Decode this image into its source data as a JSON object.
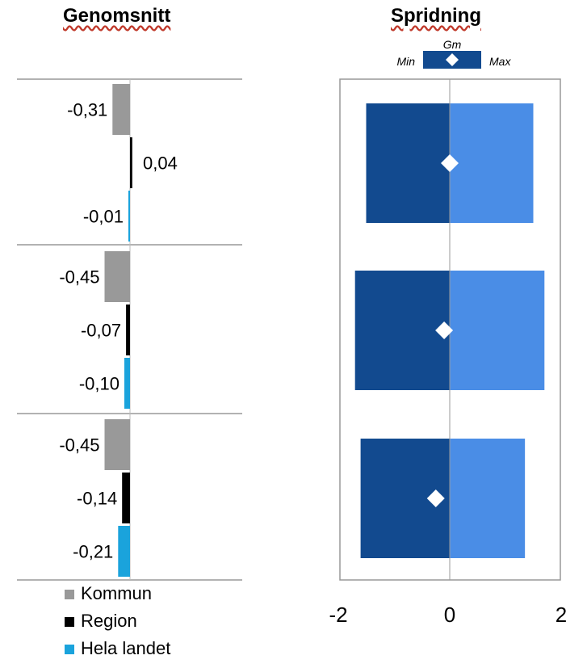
{
  "colors": {
    "kommun": "#999999",
    "region": "#000000",
    "hela_landet": "#1aa3dc",
    "min_bar": "#124a8f",
    "max_bar": "#4a8de6",
    "gm_marker": "#ffffff",
    "grid": "#999999"
  },
  "chart_data": [
    {
      "type": "bar",
      "orientation": "horizontal",
      "title": "Genomsnitt",
      "groups": 3,
      "series": [
        {
          "name": "Kommun",
          "values": [
            -0.31,
            -0.45,
            -0.45
          ],
          "labels": [
            "-0,31",
            "-0,45",
            "-0,45"
          ]
        },
        {
          "name": "Region",
          "values": [
            0.04,
            -0.07,
            -0.14
          ],
          "labels": [
            "0,04",
            "-0,07",
            "-0,14"
          ]
        },
        {
          "name": "Hela landet",
          "values": [
            -0.01,
            -0.1,
            -0.21
          ],
          "labels": [
            "-0,01",
            "-0,10",
            "-0,21"
          ]
        }
      ],
      "legend": [
        "Kommun",
        "Region",
        "Hela landet"
      ]
    },
    {
      "type": "bar",
      "orientation": "horizontal",
      "title": "Spridning",
      "legend": {
        "min": "Min",
        "gm": "Gm",
        "max": "Max"
      },
      "xlim": [
        -2,
        2
      ],
      "xticks": [
        "-2",
        "0",
        "2"
      ],
      "rows": [
        {
          "min": -1.5,
          "max": 1.5,
          "gm": 0.0
        },
        {
          "min": -1.7,
          "max": 1.7,
          "gm": -0.1
        },
        {
          "min": -1.6,
          "max": 1.35,
          "gm": -0.25
        }
      ]
    }
  ]
}
